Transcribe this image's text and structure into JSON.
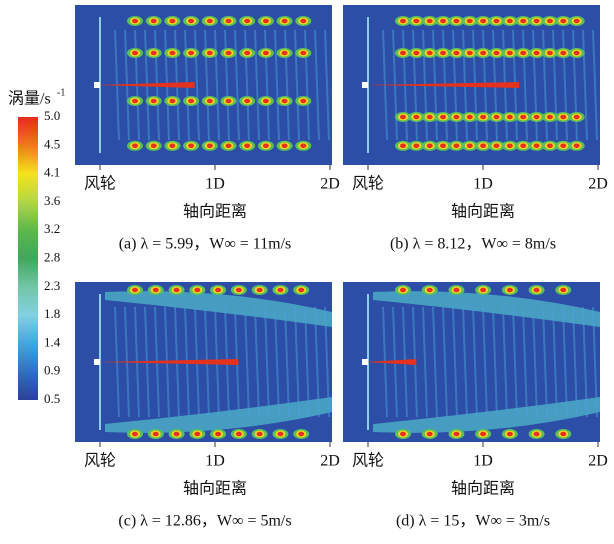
{
  "colorbar": {
    "title": "涡量/s",
    "title_sup": "-1",
    "labels": [
      "5.0",
      "4.5",
      "4.1",
      "3.6",
      "3.2",
      "2.8",
      "2.3",
      "1.8",
      "1.4",
      "0.9",
      "0.5"
    ]
  },
  "panels": [
    {
      "axis_labels": [
        "风轮",
        "1D",
        "2D"
      ],
      "axis_title": "轴向距离",
      "caption": "(a)  λ = 5.99，W∞ = 11m/s"
    },
    {
      "axis_labels": [
        "风轮",
        "1D",
        "2D"
      ],
      "axis_title": "轴向距离",
      "caption": "(b)  λ = 8.12，W∞ = 8m/s"
    },
    {
      "axis_labels": [
        "风轮",
        "1D",
        "2D"
      ],
      "axis_title": "轴向距离",
      "caption": "(c)  λ = 12.86，W∞ = 5m/s"
    },
    {
      "axis_labels": [
        "风轮",
        "1D",
        "2D"
      ],
      "axis_title": "轴向距离",
      "caption": "(d)  λ = 15，W∞ = 3m/s"
    }
  ]
}
